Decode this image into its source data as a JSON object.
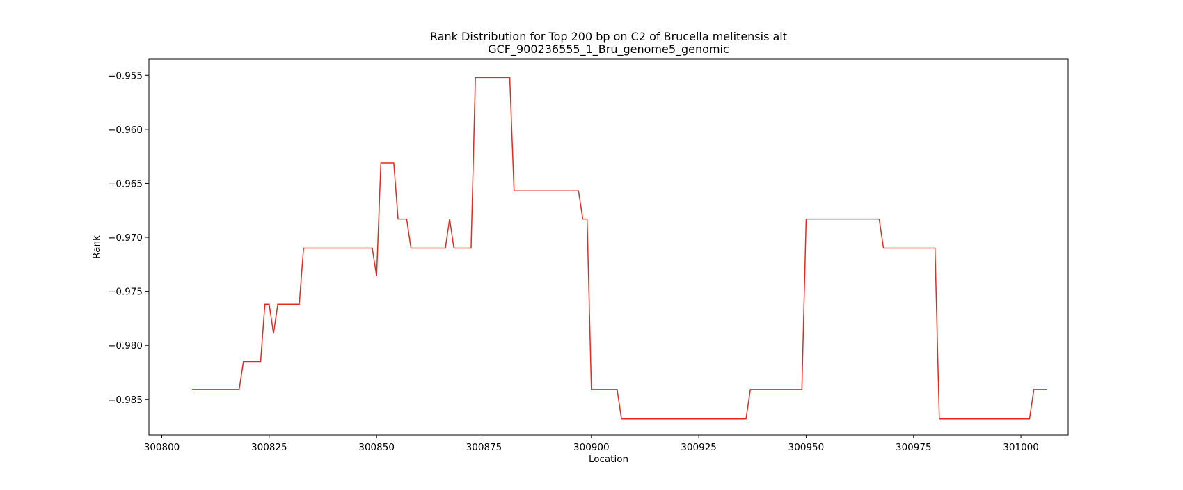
{
  "chart_data": {
    "type": "line",
    "title": "Rank Distribution for Top 200 bp on C2 of Brucella melitensis alt",
    "subtitle": "GCF_900236555_1_Bru_genome5_genomic",
    "xlabel": "Location",
    "ylabel": "Rank",
    "xlim": [
      300797,
      301011
    ],
    "ylim": [
      -0.9883,
      -0.9535
    ],
    "xticks": [
      300800,
      300825,
      300850,
      300875,
      300900,
      300925,
      300950,
      300975,
      301000
    ],
    "xtick_labels": [
      "300800",
      "300825",
      "300850",
      "300875",
      "300900",
      "300925",
      "300950",
      "300975",
      "301000"
    ],
    "yticks": [
      -0.955,
      -0.96,
      -0.965,
      -0.97,
      -0.975,
      -0.98,
      -0.985
    ],
    "ytick_labels": [
      "−0.955",
      "−0.960",
      "−0.965",
      "−0.970",
      "−0.975",
      "−0.980",
      "−0.985"
    ],
    "grid": false,
    "legend": "none",
    "series": [
      {
        "color": "#e8291c",
        "x": [
          300807,
          300818,
          300819,
          300823,
          300824,
          300825,
          300826,
          300827,
          300832,
          300833,
          300849,
          300850,
          300851,
          300854,
          300855,
          300857,
          300858,
          300866,
          300867,
          300868,
          300872,
          300873,
          300881,
          300882,
          300897,
          300898,
          300899,
          300900,
          300906,
          300907,
          300936,
          300937,
          300949,
          300950,
          300967,
          300968,
          300980,
          300981,
          301002,
          301003,
          301006
        ],
        "y": [
          -0.9841,
          -0.9841,
          -0.9815,
          -0.9815,
          -0.9762,
          -0.9762,
          -0.9789,
          -0.9762,
          -0.9762,
          -0.971,
          -0.971,
          -0.9736,
          -0.9631,
          -0.9631,
          -0.9683,
          -0.9683,
          -0.971,
          -0.971,
          -0.9683,
          -0.971,
          -0.971,
          -0.9552,
          -0.9552,
          -0.9657,
          -0.9657,
          -0.9683,
          -0.9683,
          -0.9841,
          -0.9841,
          -0.9868,
          -0.9868,
          -0.9841,
          -0.9841,
          -0.9683,
          -0.9683,
          -0.971,
          -0.971,
          -0.9868,
          -0.9868,
          -0.9841,
          -0.9841
        ]
      }
    ]
  }
}
